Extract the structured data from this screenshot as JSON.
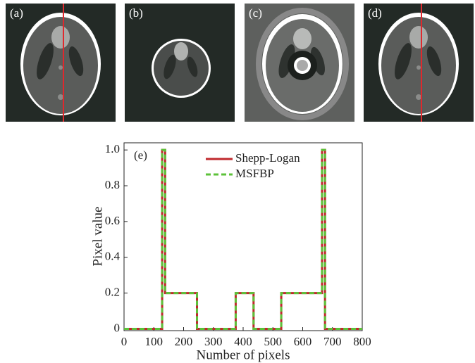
{
  "panels": [
    "(a)",
    "(b)",
    "(c)",
    "(d)"
  ],
  "chart_data": {
    "type": "line",
    "annotation": "(e)",
    "x_label": "Number of pixels",
    "y_label": "Pixel value",
    "xlim": [
      0,
      800
    ],
    "ylim": [
      -0.01,
      1.04
    ],
    "xticks": [
      0,
      100,
      200,
      300,
      400,
      500,
      600,
      700,
      800
    ],
    "yticks": [
      0,
      0.2,
      0.4,
      0.6,
      0.8,
      {
        "value": 1,
        "label": "1.0"
      }
    ],
    "legend": "upper right",
    "series": [
      {
        "name": "Shepp-Logan",
        "color": "#c0282d",
        "dash": false,
        "x": [
          0,
          128,
          128,
          138,
          138,
          245,
          245,
          375,
          375,
          435,
          435,
          528,
          528,
          665,
          665,
          675,
          675,
          800
        ],
        "values": [
          0,
          0,
          1,
          1,
          0.2,
          0.2,
          0,
          0,
          0.2,
          0.2,
          0,
          0,
          0.2,
          0.2,
          1,
          1,
          0,
          0
        ]
      },
      {
        "name": "MSFBP",
        "color": "#5cc23a",
        "dash": true,
        "x": [
          0,
          128,
          128,
          138,
          138,
          245,
          245,
          375,
          375,
          435,
          435,
          528,
          528,
          665,
          665,
          675,
          675,
          800
        ],
        "values": [
          0,
          0,
          1,
          1,
          0.2,
          0.2,
          0,
          0,
          0.2,
          0.2,
          0,
          0,
          0.2,
          0.2,
          1,
          1,
          0,
          0
        ]
      }
    ]
  }
}
